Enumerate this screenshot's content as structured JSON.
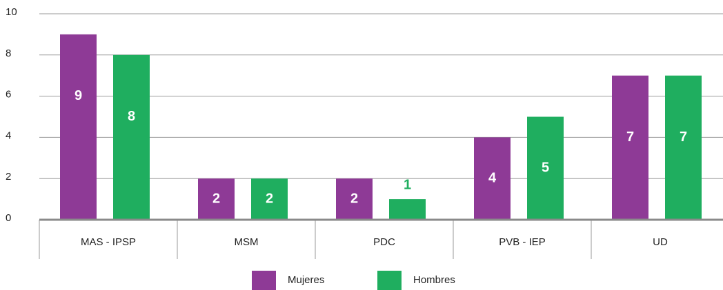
{
  "chart_data": {
    "type": "bar",
    "categories": [
      "MAS - IPSP",
      "MSM",
      "PDC",
      "PVB - IEP",
      "UD"
    ],
    "series": [
      {
        "name": "Mujeres",
        "color": "#8e3a96",
        "values": [
          9,
          2,
          2,
          4,
          7
        ]
      },
      {
        "name": "Hombres",
        "color": "#1fae5f",
        "values": [
          8,
          2,
          1,
          5,
          7
        ]
      }
    ],
    "ylim": [
      0,
      10
    ],
    "yticks": [
      0,
      2,
      4,
      6,
      8,
      10
    ],
    "grid": true,
    "legend": "bottom"
  }
}
